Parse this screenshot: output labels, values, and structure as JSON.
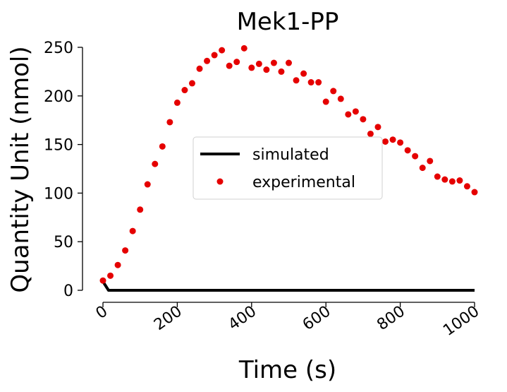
{
  "chart_data": {
    "type": "scatter",
    "title": "Mek1-PP",
    "xlabel": "Time (s)",
    "ylabel": "Quantity Unit (nmol)",
    "xlim": [
      0,
      1000
    ],
    "ylim": [
      0,
      250
    ],
    "xticks": [
      0,
      200,
      400,
      600,
      800,
      1000
    ],
    "yticks": [
      0,
      50,
      100,
      150,
      200,
      250
    ],
    "grid": false,
    "legend_position": "center-right",
    "series": [
      {
        "name": "simulated",
        "kind": "line",
        "color": "#000000",
        "x": [
          0,
          15,
          1000
        ],
        "y": [
          9,
          0,
          0
        ]
      },
      {
        "name": "experimental",
        "kind": "points",
        "color": "#e50000",
        "x": [
          0,
          20,
          40,
          60,
          80,
          100,
          120,
          140,
          160,
          180,
          200,
          220,
          240,
          260,
          280,
          300,
          320,
          340,
          360,
          380,
          400,
          420,
          440,
          460,
          480,
          500,
          520,
          540,
          560,
          580,
          600,
          620,
          640,
          660,
          680,
          700,
          720,
          740,
          760,
          780,
          800,
          820,
          840,
          860,
          880,
          900,
          920,
          940,
          960,
          980,
          1000
        ],
        "y": [
          10,
          15,
          26,
          41,
          61,
          83,
          109,
          130,
          148,
          173,
          193,
          206,
          213,
          228,
          236,
          242,
          247,
          231,
          235,
          249,
          229,
          233,
          227,
          234,
          225,
          234,
          216,
          223,
          214,
          214,
          194,
          205,
          197,
          181,
          184,
          176,
          161,
          168,
          153,
          155,
          152,
          144,
          138,
          126,
          133,
          117,
          114,
          112,
          113,
          107,
          101
        ]
      }
    ]
  }
}
